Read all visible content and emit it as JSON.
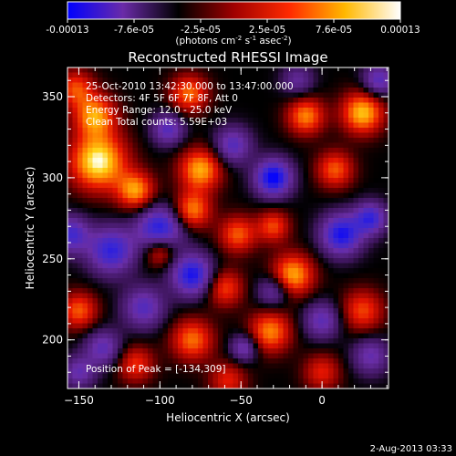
{
  "colorbar": {
    "ticks": [
      "-0.00013",
      "-7.6e-05",
      "-2.5e-05",
      "2.5e-05",
      "7.6e-05",
      "0.00013"
    ],
    "units_base": "(photons cm",
    "units_exp1": "-2",
    "units_mid": " s",
    "units_exp2": "-1",
    "units_mid2": " asec",
    "units_exp3": "-2",
    "units_end": ")",
    "stops": [
      "#0000ff",
      "#6a2ba8",
      "#000000",
      "#a00000",
      "#ff2a00",
      "#ffb800",
      "#ffffff"
    ]
  },
  "chart_data": {
    "type": "heatmap",
    "title": "Reconstructed RHESSI Image",
    "xlabel": "Heliocentric X (arcsec)",
    "ylabel": "Heliocentric Y (arcsec)",
    "xlim": [
      -157,
      41
    ],
    "ylim": [
      170,
      368
    ],
    "xticks": [
      {
        "v": -150,
        "t": "−150"
      },
      {
        "v": -100,
        "t": "−100"
      },
      {
        "v": -50,
        "t": "−50"
      },
      {
        "v": 0,
        "t": "0"
      }
    ],
    "yticks": [
      {
        "v": 200,
        "t": "200"
      },
      {
        "v": 250,
        "t": "250"
      },
      {
        "v": 300,
        "t": "300"
      },
      {
        "v": 350,
        "t": "350"
      }
    ],
    "annotations": [
      "25-Oct-2010 13:42:30.000 to 13:47:00.000",
      "Detectors: 4F 5F 6F 7F 8F, Att 0",
      "Energy Range: 12.0 - 25.0 keV",
      "Clean     Total counts: 5.59E+03"
    ],
    "peak_label": "Position of Peak = [-134,309]",
    "sources": [
      {
        "x": -138,
        "y": 310,
        "a": 1.0,
        "s": 12
      },
      {
        "x": -140,
        "y": 338,
        "a": 0.75,
        "s": 9
      },
      {
        "x": -152,
        "y": 355,
        "a": 0.55,
        "s": 8
      },
      {
        "x": -82,
        "y": 352,
        "a": 0.65,
        "s": 8
      },
      {
        "x": -75,
        "y": 305,
        "a": 0.8,
        "s": 9
      },
      {
        "x": -80,
        "y": 280,
        "a": 0.7,
        "s": 8
      },
      {
        "x": -115,
        "y": 292,
        "a": 0.75,
        "s": 8
      },
      {
        "x": -100,
        "y": 255,
        "a": 0.6,
        "s": 7
      },
      {
        "x": -52,
        "y": 265,
        "a": 0.6,
        "s": 8
      },
      {
        "x": -60,
        "y": 232,
        "a": 0.55,
        "s": 8
      },
      {
        "x": -10,
        "y": 338,
        "a": 0.7,
        "s": 8
      },
      {
        "x": 25,
        "y": 340,
        "a": 0.85,
        "s": 9
      },
      {
        "x": -30,
        "y": 270,
        "a": 0.55,
        "s": 7
      },
      {
        "x": -18,
        "y": 240,
        "a": 0.8,
        "s": 9
      },
      {
        "x": 8,
        "y": 305,
        "a": 0.6,
        "s": 8
      },
      {
        "x": -32,
        "y": 205,
        "a": 0.7,
        "s": 9
      },
      {
        "x": -80,
        "y": 200,
        "a": 0.65,
        "s": 9
      },
      {
        "x": -150,
        "y": 218,
        "a": 0.6,
        "s": 8
      },
      {
        "x": 25,
        "y": 218,
        "a": 0.55,
        "s": 9
      },
      {
        "x": 0,
        "y": 180,
        "a": 0.45,
        "s": 8
      },
      {
        "x": -115,
        "y": 185,
        "a": 0.5,
        "s": 8
      },
      {
        "x": -58,
        "y": 175,
        "a": 0.45,
        "s": 8
      },
      {
        "x": -30,
        "y": 300,
        "a": -1.0,
        "s": 8
      },
      {
        "x": -100,
        "y": 268,
        "a": -0.9,
        "s": 10
      },
      {
        "x": -80,
        "y": 240,
        "a": -0.9,
        "s": 9
      },
      {
        "x": -130,
        "y": 255,
        "a": -0.8,
        "s": 10
      },
      {
        "x": 12,
        "y": 265,
        "a": -0.9,
        "s": 9
      },
      {
        "x": 30,
        "y": 275,
        "a": -0.75,
        "s": 7
      },
      {
        "x": -155,
        "y": 265,
        "a": -0.7,
        "s": 8
      },
      {
        "x": -55,
        "y": 320,
        "a": -0.6,
        "s": 8
      },
      {
        "x": -110,
        "y": 220,
        "a": -0.6,
        "s": 9
      },
      {
        "x": -30,
        "y": 230,
        "a": -0.5,
        "s": 7
      },
      {
        "x": 0,
        "y": 212,
        "a": -0.55,
        "s": 8
      },
      {
        "x": -95,
        "y": 330,
        "a": -0.6,
        "s": 7
      },
      {
        "x": -135,
        "y": 195,
        "a": -0.55,
        "s": 8
      },
      {
        "x": 30,
        "y": 190,
        "a": -0.5,
        "s": 8
      },
      {
        "x": 35,
        "y": 360,
        "a": -0.6,
        "s": 7
      },
      {
        "x": -15,
        "y": 360,
        "a": -0.4,
        "s": 7
      },
      {
        "x": -48,
        "y": 195,
        "a": -0.55,
        "s": 6
      },
      {
        "x": -150,
        "y": 180,
        "a": -0.5,
        "s": 7
      }
    ]
  },
  "footer": {
    "timestamp": "2-Aug-2013 03:33"
  }
}
